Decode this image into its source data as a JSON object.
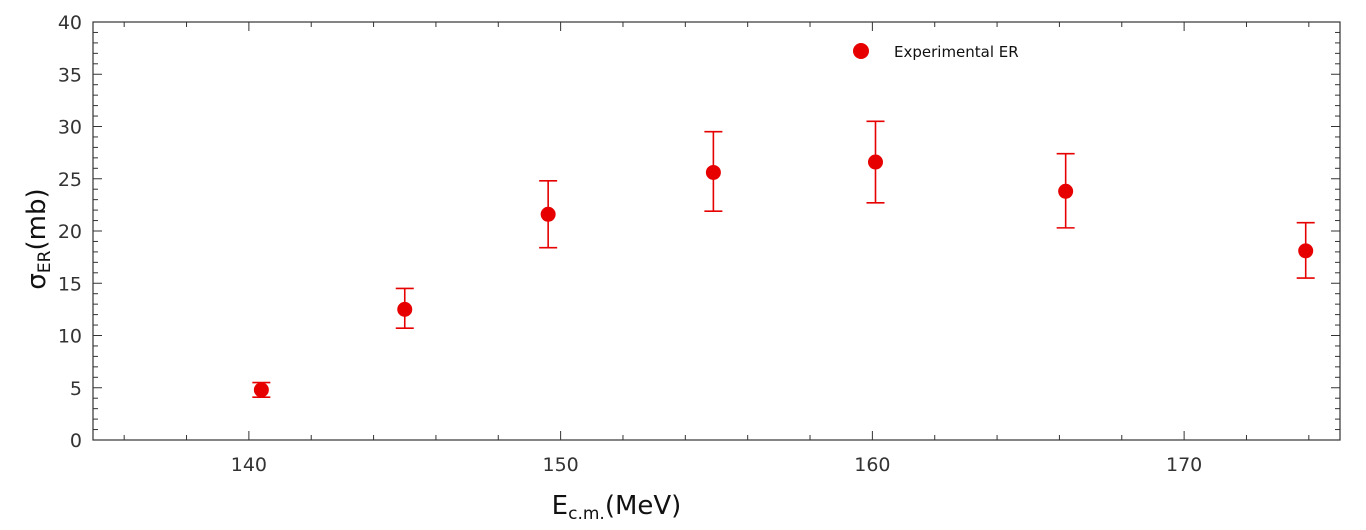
{
  "chart_data": {
    "type": "scatter",
    "xlabel": {
      "main": "E",
      "sub": "c.m.",
      "unit": "(MeV)"
    },
    "ylabel": {
      "main": "σ",
      "sub": "ER",
      "unit": "(mb)"
    },
    "xlim": [
      135,
      175
    ],
    "ylim": [
      0,
      40
    ],
    "x_ticks": [
      140,
      150,
      160,
      170
    ],
    "y_ticks": [
      0,
      5,
      10,
      15,
      20,
      25,
      30,
      35,
      40
    ],
    "grid": false,
    "legend": {
      "position": "top-center"
    },
    "series": [
      {
        "name": "Experimental ER",
        "color": "#e60000",
        "marker": "circle",
        "points": [
          {
            "x": 140.4,
            "y": 4.8,
            "err_low": 4.1,
            "err_high": 5.5
          },
          {
            "x": 145.0,
            "y": 12.5,
            "err_low": 10.7,
            "err_high": 14.5
          },
          {
            "x": 149.6,
            "y": 21.6,
            "err_low": 18.4,
            "err_high": 24.8
          },
          {
            "x": 154.9,
            "y": 25.6,
            "err_low": 21.9,
            "err_high": 29.5
          },
          {
            "x": 160.1,
            "y": 26.6,
            "err_low": 22.7,
            "err_high": 30.5
          },
          {
            "x": 166.2,
            "y": 23.8,
            "err_low": 20.3,
            "err_high": 27.4
          },
          {
            "x": 173.9,
            "y": 18.1,
            "err_low": 15.5,
            "err_high": 20.8
          }
        ]
      }
    ]
  }
}
